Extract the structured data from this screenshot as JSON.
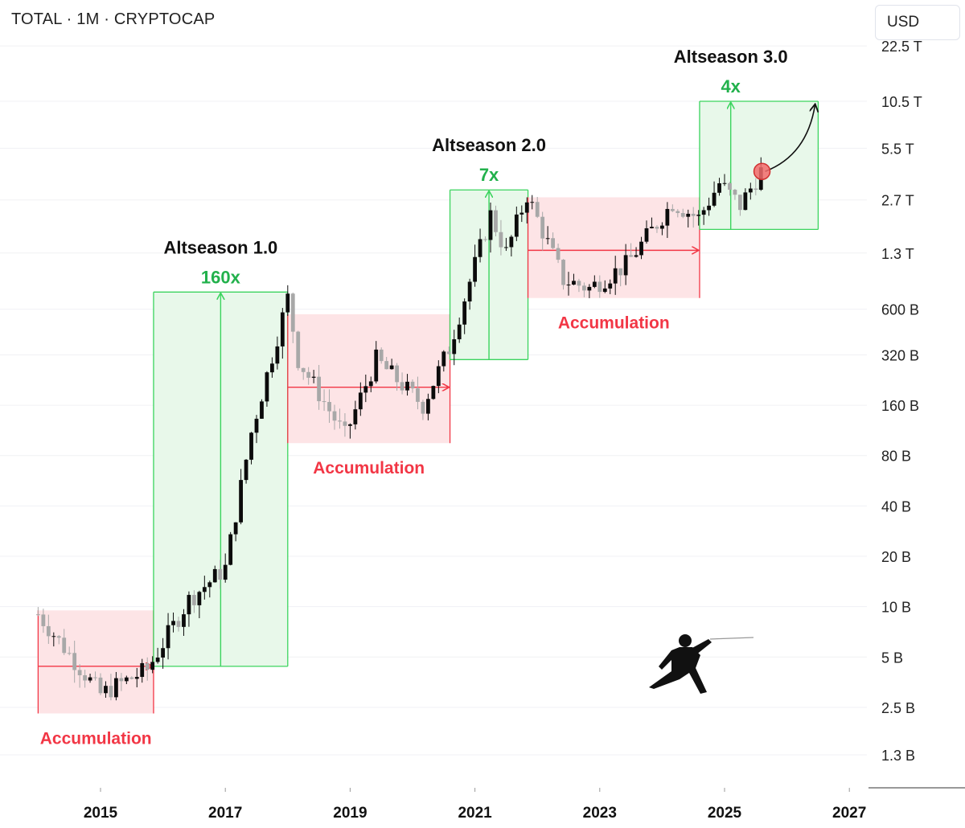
{
  "header": {
    "symbol": "TOTAL",
    "interval": "1M",
    "source": "CRYPTOCAP",
    "separator": "·",
    "currency": "USD"
  },
  "colors": {
    "up": "#0b0b0b",
    "down": "#a8a8a8",
    "green_zone": "#e8f8ea",
    "green_line": "#3bd45e",
    "green_text": "#22b14c",
    "red_zone": "#fde4e6",
    "red_line": "#f23645",
    "red_text": "#f23645",
    "grid": "#f0f1f4"
  },
  "chart_data": {
    "type": "candlestick",
    "title": "TOTAL · 1M · CRYPTOCAP",
    "y_scale": "log",
    "ylim": [
      1.0,
      22.5
    ],
    "y_ticks": [
      {
        "label": "22.5 T",
        "value": 22500000000000.0
      },
      {
        "label": "10.5 T",
        "value": 10500000000000.0
      },
      {
        "label": "5.5 T",
        "value": 5500000000000.0
      },
      {
        "label": "2.7 T",
        "value": 2700000000000.0
      },
      {
        "label": "1.3 T",
        "value": 1300000000000.0
      },
      {
        "label": "600 B",
        "value": 600000000000.0
      },
      {
        "label": "320 B",
        "value": 320000000000.0
      },
      {
        "label": "160 B",
        "value": 160000000000.0
      },
      {
        "label": "80 B",
        "value": 80000000000.0
      },
      {
        "label": "40 B",
        "value": 40000000000.0
      },
      {
        "label": "20 B",
        "value": 20000000000.0
      },
      {
        "label": "10 B",
        "value": 10000000000.0
      },
      {
        "label": "5 B",
        "value": 5000000000.0
      },
      {
        "label": "2.5 B",
        "value": 2500000000.0
      },
      {
        "label": "1.3 B",
        "value": 1300000000.0
      }
    ],
    "x_ticks": [
      {
        "label": "2015",
        "year": 2015
      },
      {
        "label": "2017",
        "year": 2017
      },
      {
        "label": "2019",
        "year": 2019
      },
      {
        "label": "2021",
        "year": 2021
      },
      {
        "label": "2023",
        "year": 2023
      },
      {
        "label": "2025",
        "year": 2025
      },
      {
        "label": "2027",
        "year": 2027
      }
    ],
    "key_points": [
      {
        "date": "2014-01",
        "value_usd": 9000000000.0
      },
      {
        "date": "2015-01",
        "value_usd": 3000000000.0
      },
      {
        "date": "2015-10",
        "value_usd": 4200000000.0
      },
      {
        "date": "2016-06",
        "value_usd": 11000000000.0
      },
      {
        "date": "2017-01",
        "value_usd": 17000000000.0
      },
      {
        "date": "2017-06",
        "value_usd": 110000000000.0
      },
      {
        "date": "2018-01",
        "value_usd": 700000000000.0
      },
      {
        "date": "2018-03",
        "value_usd": 300000000000.0
      },
      {
        "date": "2018-12",
        "value_usd": 105000000000.0
      },
      {
        "date": "2019-06",
        "value_usd": 300000000000.0
      },
      {
        "date": "2020-03",
        "value_usd": 160000000000.0
      },
      {
        "date": "2020-08",
        "value_usd": 350000000000.0
      },
      {
        "date": "2021-04",
        "value_usd": 2200000000000.0
      },
      {
        "date": "2021-07",
        "value_usd": 1300000000000.0
      },
      {
        "date": "2021-11",
        "value_usd": 2900000000000.0
      },
      {
        "date": "2022-06",
        "value_usd": 900000000000.0
      },
      {
        "date": "2022-11",
        "value_usd": 800000000000.0
      },
      {
        "date": "2023-06",
        "value_usd": 1100000000000.0
      },
      {
        "date": "2024-03",
        "value_usd": 2600000000000.0
      },
      {
        "date": "2024-08",
        "value_usd": 2100000000000.0
      },
      {
        "date": "2024-12",
        "value_usd": 3400000000000.0
      },
      {
        "date": "2025-04",
        "value_usd": 2500000000000.0
      },
      {
        "date": "2025-08",
        "value_usd": 4000000000000.0
      }
    ],
    "zones": [
      {
        "kind": "accumulation",
        "label": "Accumulation",
        "start": 2014.0,
        "end": 2015.85,
        "low_usd": 2300000000.0,
        "high_usd": 9500000000.0,
        "mid_usd": 4400000000.0
      },
      {
        "kind": "altseason",
        "label": "Altseason 1.0",
        "multiple": "160x",
        "start": 2015.85,
        "end": 2018.0,
        "low_usd": 4400000000.0,
        "high_usd": 760000000000.0
      },
      {
        "kind": "accumulation",
        "label": "Accumulation",
        "start": 2018.0,
        "end": 2020.6,
        "low_usd": 95000000000.0,
        "high_usd": 560000000000.0,
        "mid_usd": 205000000000.0
      },
      {
        "kind": "altseason",
        "label": "Altseason 2.0",
        "multiple": "7x",
        "start": 2020.6,
        "end": 2021.85,
        "low_usd": 300000000000.0,
        "high_usd": 3100000000000.0
      },
      {
        "kind": "accumulation",
        "label": "Accumulation",
        "start": 2021.85,
        "end": 2024.6,
        "low_usd": 700000000000.0,
        "high_usd": 2800000000000.0,
        "mid_usd": 1350000000000.0
      },
      {
        "kind": "altseason",
        "label": "Altseason 3.0",
        "multiple": "4x",
        "start": 2024.6,
        "end": 2026.5,
        "low_usd": 1800000000000.0,
        "high_usd": 10500000000000.0
      }
    ],
    "projection": {
      "from_year": 2025.6,
      "from_usd": 4000000000000.0,
      "to_year": 2026.45,
      "to_usd": 10000000000000.0
    },
    "grid": true,
    "legend": "none"
  }
}
